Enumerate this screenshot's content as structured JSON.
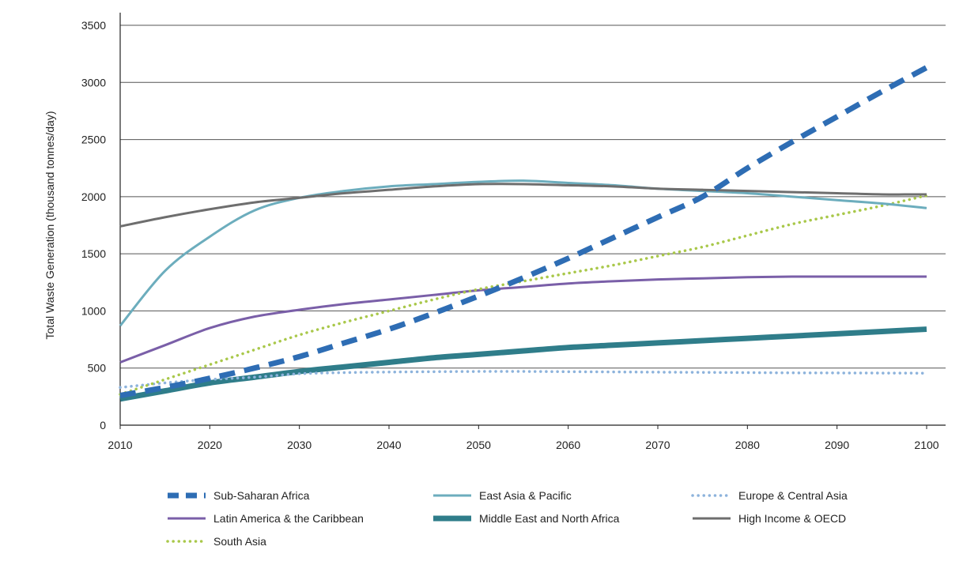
{
  "chart_data": {
    "type": "line",
    "title": "",
    "xlabel": "",
    "ylabel": "Total Waste Generation (thousand tonnes/day)",
    "xlim": [
      2010,
      2100
    ],
    "ylim": [
      0,
      3500
    ],
    "xticks": [
      "2010",
      "2020",
      "2030",
      "2040",
      "2050",
      "2060",
      "2070",
      "2080",
      "2090",
      "2100"
    ],
    "yticks": [
      "0",
      "500",
      "1000",
      "1500",
      "2000",
      "2500",
      "3000",
      "3500"
    ],
    "grid": "horizontal",
    "legend_position": "bottom",
    "x": [
      2010,
      2015,
      2020,
      2025,
      2030,
      2035,
      2040,
      2045,
      2050,
      2055,
      2060,
      2065,
      2070,
      2075,
      2080,
      2085,
      2090,
      2095,
      2100
    ],
    "series": [
      {
        "name": "Sub-Saharan Africa",
        "color": "#2e6db4",
        "style": "dashed",
        "values": [
          260,
          330,
          410,
          500,
          600,
          720,
          840,
          980,
          1130,
          1290,
          1460,
          1640,
          1820,
          2000,
          2250,
          2480,
          2700,
          2920,
          3130
        ]
      },
      {
        "name": "East Asia & Pacific",
        "color": "#6cadbd",
        "style": "solid",
        "values": [
          870,
          1350,
          1650,
          1880,
          1990,
          2050,
          2090,
          2110,
          2130,
          2140,
          2120,
          2100,
          2070,
          2050,
          2030,
          2000,
          1970,
          1940,
          1900
        ]
      },
      {
        "name": "Europe & Central Asia",
        "color": "#8db3dc",
        "style": "dotted",
        "values": [
          330,
          370,
          400,
          420,
          450,
          460,
          465,
          468,
          470,
          470,
          468,
          466,
          464,
          462,
          460,
          458,
          457,
          456,
          455
        ]
      },
      {
        "name": "Latin America & the Caribbean",
        "color": "#7a5fa8",
        "style": "solid",
        "values": [
          550,
          700,
          850,
          950,
          1010,
          1060,
          1100,
          1140,
          1180,
          1210,
          1240,
          1260,
          1275,
          1285,
          1295,
          1300,
          1300,
          1300,
          1300
        ]
      },
      {
        "name": "Middle East and North Africa",
        "color": "#2f7d8a",
        "style": "thick",
        "values": [
          230,
          300,
          370,
          420,
          470,
          510,
          550,
          590,
          620,
          650,
          680,
          700,
          720,
          740,
          760,
          780,
          800,
          820,
          840
        ]
      },
      {
        "name": "High Income & OECD",
        "color": "#6e6e6e",
        "style": "solid",
        "values": [
          1740,
          1820,
          1890,
          1950,
          1990,
          2030,
          2060,
          2090,
          2110,
          2110,
          2100,
          2090,
          2070,
          2060,
          2050,
          2040,
          2030,
          2020,
          2020
        ]
      },
      {
        "name": "South Asia",
        "color": "#a9c84a",
        "style": "dotted",
        "values": [
          270,
          400,
          530,
          660,
          790,
          900,
          1000,
          1100,
          1190,
          1260,
          1330,
          1400,
          1480,
          1560,
          1660,
          1760,
          1840,
          1920,
          2010
        ]
      }
    ]
  }
}
